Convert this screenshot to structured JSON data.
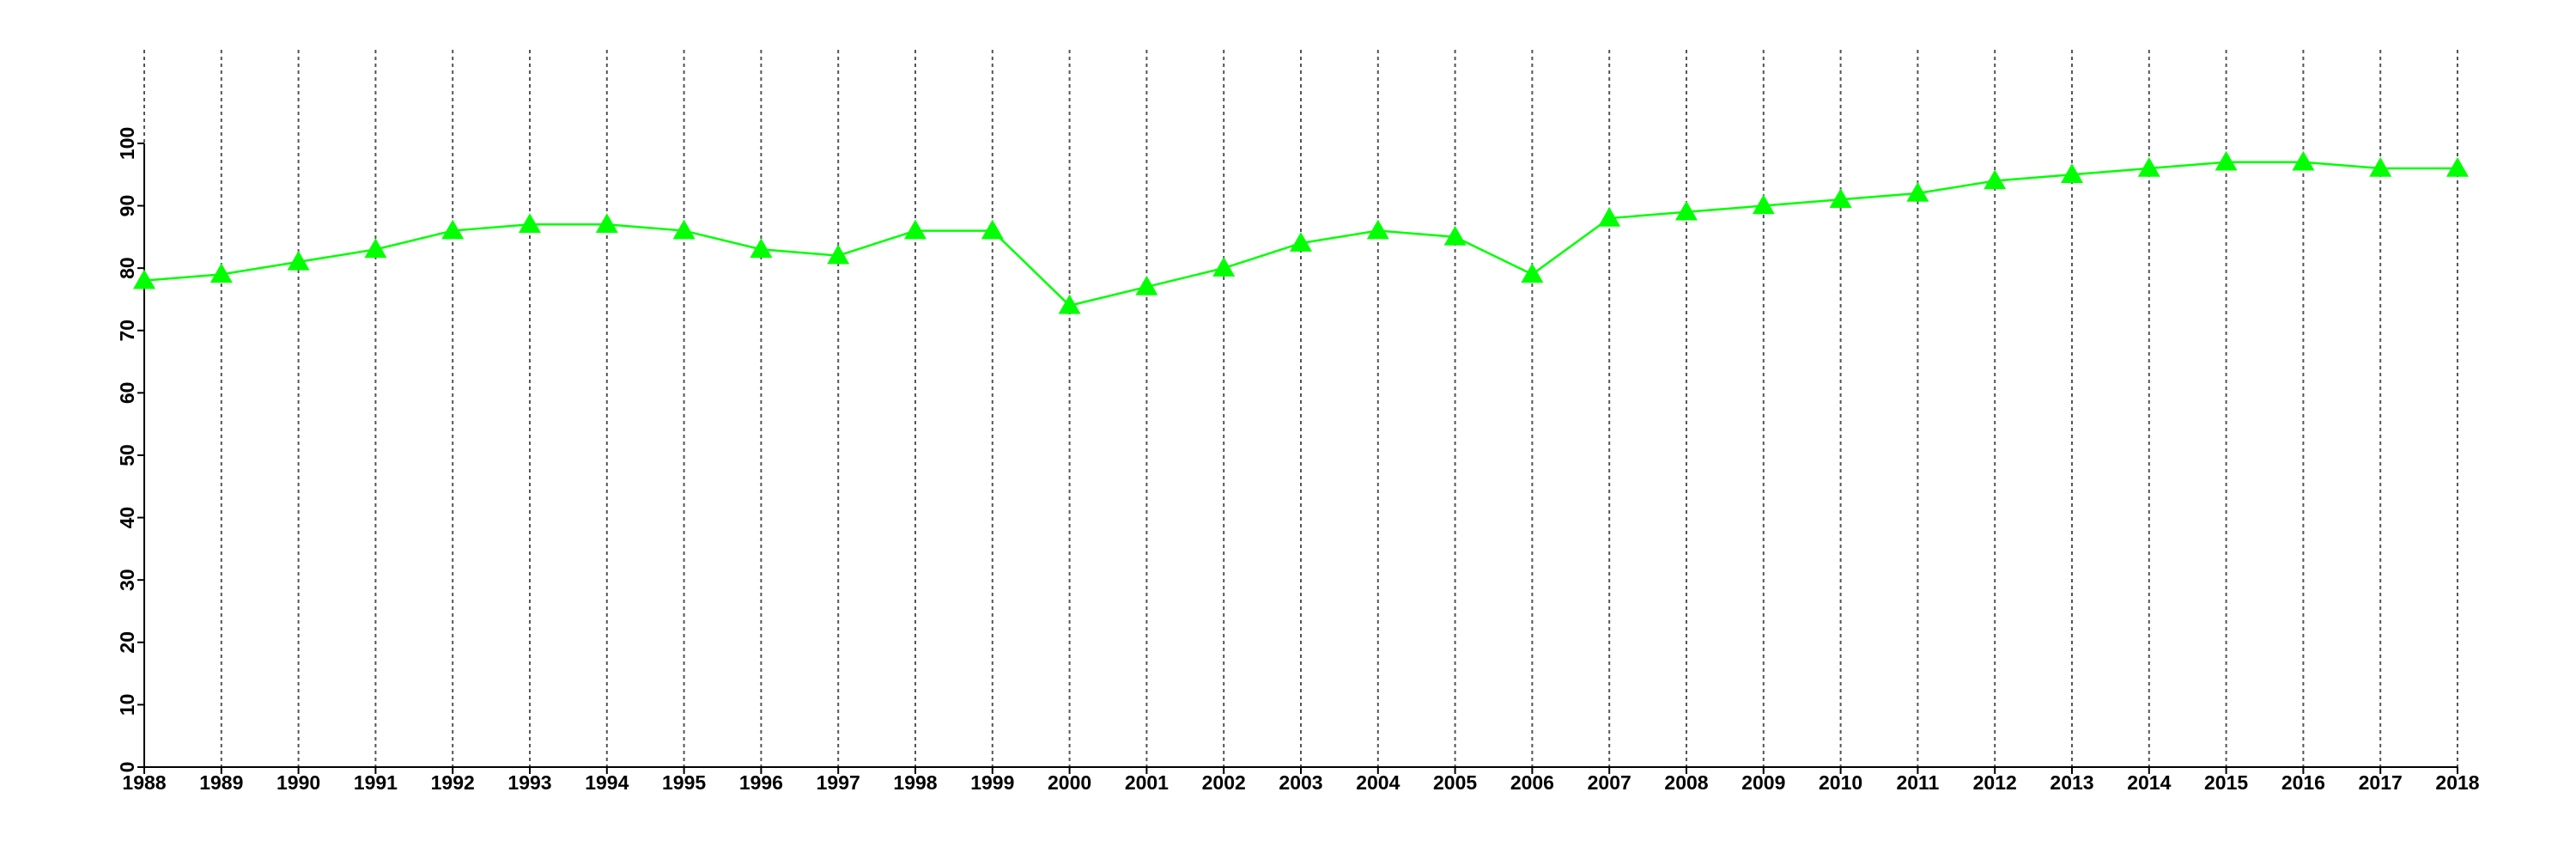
{
  "chart_data": {
    "type": "line",
    "x": [
      1988,
      1989,
      1990,
      1991,
      1992,
      1993,
      1994,
      1995,
      1996,
      1997,
      1998,
      1999,
      2000,
      2001,
      2002,
      2003,
      2004,
      2005,
      2006,
      2007,
      2008,
      2009,
      2010,
      2011,
      2012,
      2013,
      2014,
      2015,
      2016,
      2017,
      2018
    ],
    "values": [
      78,
      79,
      81,
      83,
      86,
      87,
      87,
      86,
      83,
      82,
      86,
      86,
      74,
      77,
      80,
      84,
      86,
      85,
      79,
      88,
      89,
      90,
      91,
      92,
      94,
      95,
      96,
      97,
      97,
      96,
      96
    ],
    "color": "#00ff00",
    "marker": "triangle",
    "xlim": [
      1988,
      2018
    ],
    "xticks": [
      1988,
      1989,
      1990,
      1991,
      1992,
      1993,
      1994,
      1995,
      1996,
      1997,
      1998,
      1999,
      2000,
      2001,
      2002,
      2003,
      2004,
      2005,
      2006,
      2007,
      2008,
      2009,
      2010,
      2011,
      2012,
      2013,
      2014,
      2015,
      2016,
      2017,
      2018
    ],
    "ylim": [
      0,
      115
    ],
    "yticks": [
      0,
      10,
      20,
      30,
      40,
      50,
      60,
      70,
      80,
      90,
      100
    ],
    "grid": true
  }
}
